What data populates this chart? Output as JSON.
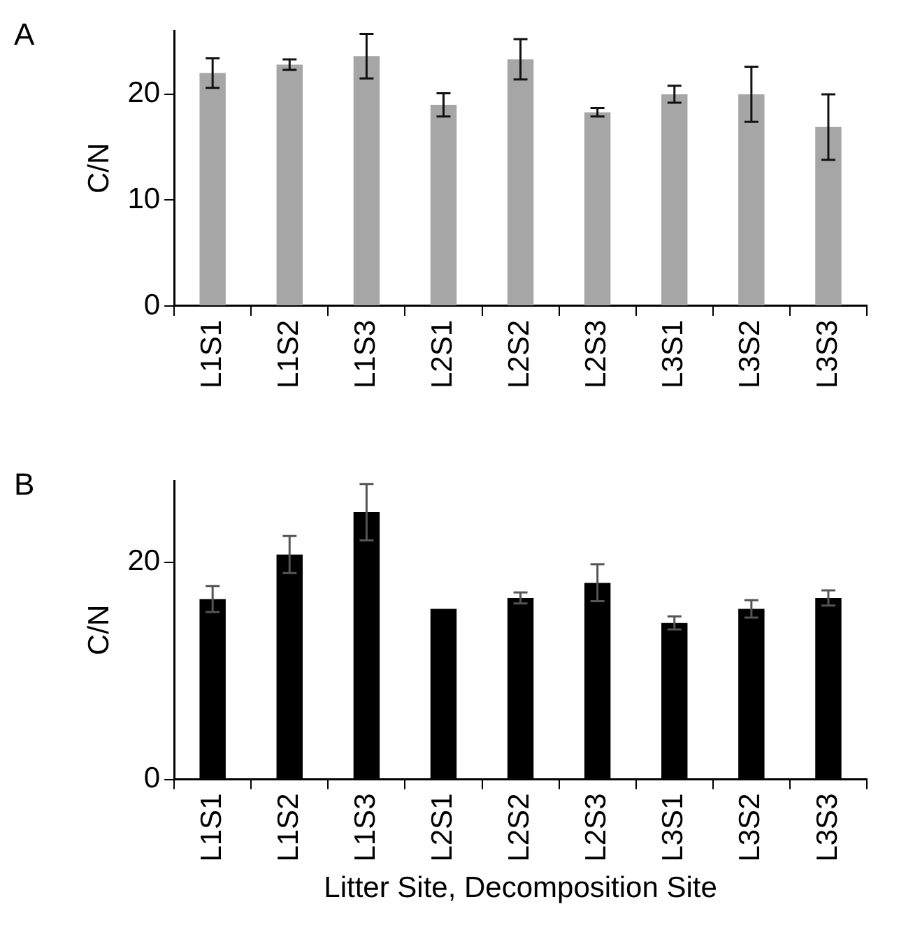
{
  "chart_data": [
    {
      "type": "bar",
      "annotations": [
        "A"
      ],
      "ylabel": "C/N",
      "categories": [
        "L1S1",
        "L1S2",
        "L1S3",
        "L2S1",
        "L2S2",
        "L2S3",
        "L3S1",
        "L3S2",
        "L3S3"
      ],
      "series": [
        {
          "color": "#a6a6a6",
          "values": [
            22.0,
            22.8,
            23.6,
            19.0,
            23.3,
            18.3,
            20.0,
            20.0,
            16.9
          ],
          "errors": [
            1.4,
            0.5,
            2.1,
            1.1,
            1.9,
            0.4,
            0.8,
            2.6,
            3.1
          ]
        }
      ],
      "ylim": [
        0,
        26
      ],
      "yticks": [
        0,
        10,
        20
      ],
      "grid": false
    },
    {
      "type": "bar",
      "annotations": [
        "B"
      ],
      "ylabel": "C/N",
      "xlabel": "Litter Site, Decomposition Site",
      "categories": [
        "L1S1",
        "L1S2",
        "L1S3",
        "L2S1",
        "L2S2",
        "L2S3",
        "L3S1",
        "L3S2",
        "L3S3"
      ],
      "series": [
        {
          "color": "#000000",
          "values": [
            16.6,
            20.7,
            24.6,
            15.7,
            16.7,
            18.1,
            14.4,
            15.7,
            16.7
          ],
          "errors": [
            1.2,
            1.7,
            2.6,
            null,
            0.5,
            1.7,
            0.6,
            0.8,
            0.7
          ]
        }
      ],
      "ylim": [
        0,
        27.5
      ],
      "yticks": [
        0,
        20
      ],
      "grid": false
    }
  ]
}
